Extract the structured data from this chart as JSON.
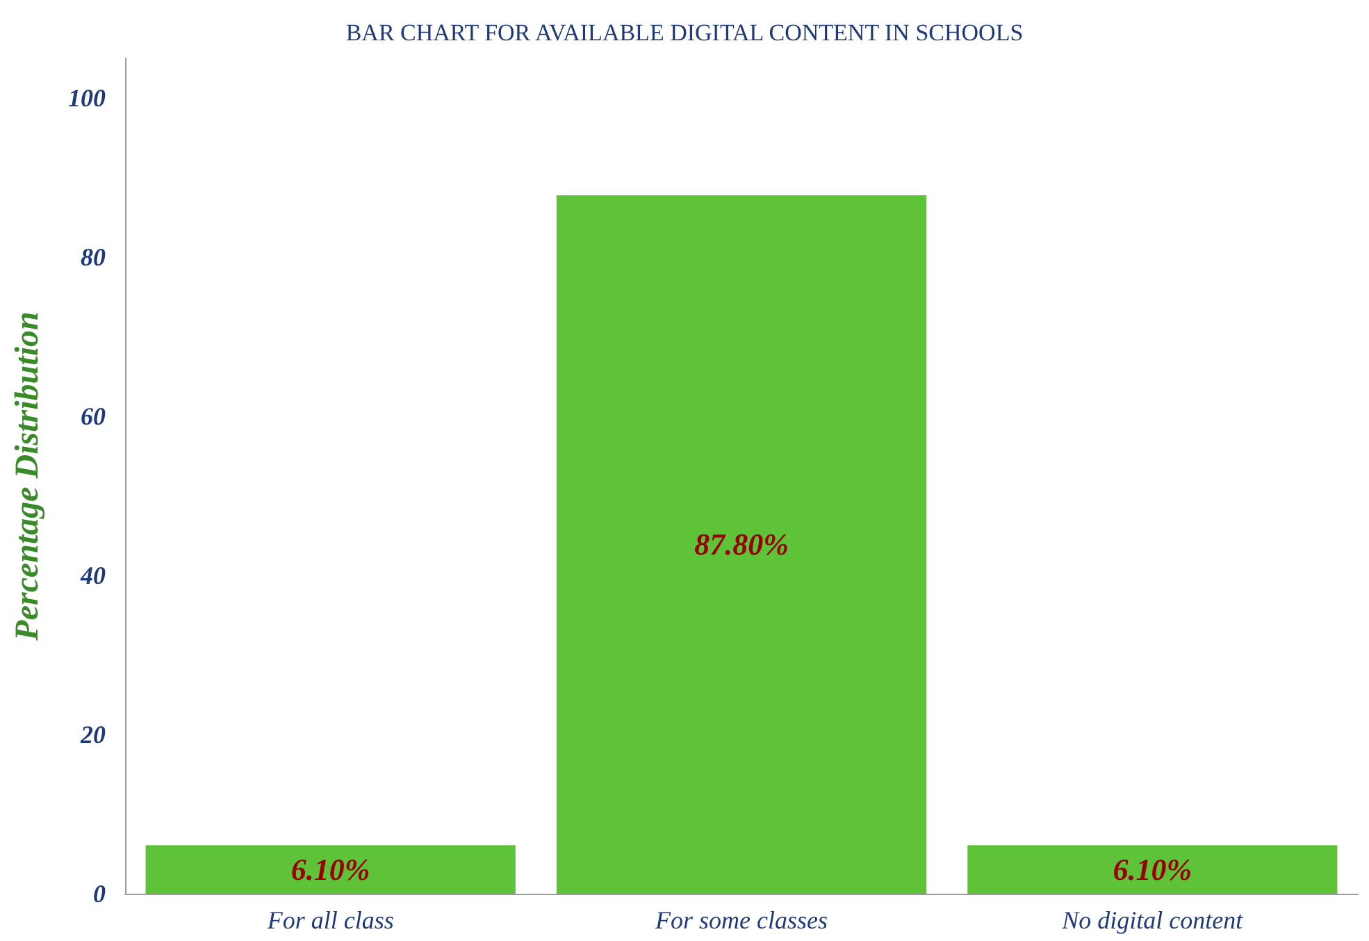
{
  "chart_data": {
    "type": "bar",
    "title": "BAR CHART FOR AVAILABLE DIGITAL CONTENT IN SCHOOLS",
    "ylabel": "Percentage Distribution",
    "categories": [
      "For all class",
      "For some classes",
      "No digital content"
    ],
    "values": [
      6.1,
      87.8,
      6.1
    ],
    "value_labels": [
      "6.10%",
      "87.80%",
      "6.10%"
    ],
    "color": "#5fc33a",
    "ylim": [
      0,
      105
    ],
    "yticks": [
      0,
      20,
      40,
      60,
      80,
      100
    ],
    "grid": false
  }
}
